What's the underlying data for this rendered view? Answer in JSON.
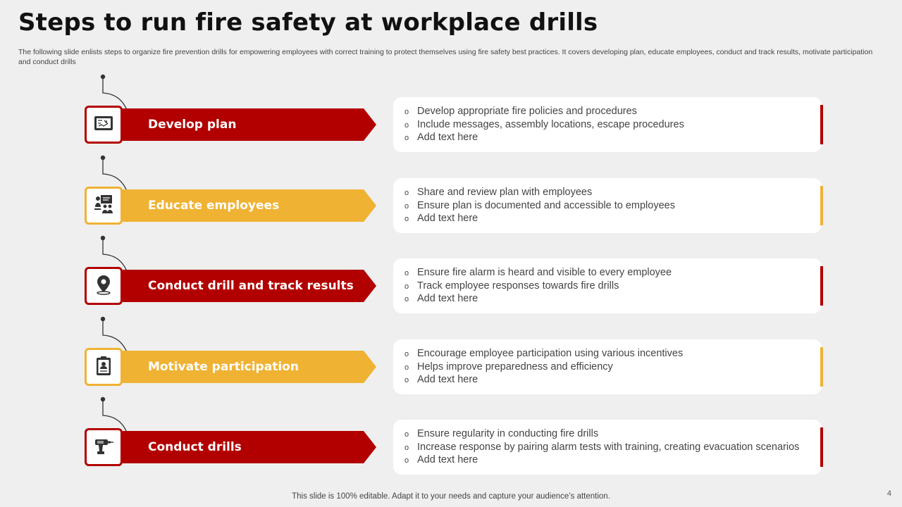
{
  "title": "Steps to run fire safety at workplace drills",
  "subtitle": "The following slide enlists steps to organize fire prevention drills for empowering employees with correct training to protect themselves using fire safety best practices. It covers developing plan, educate employees, conduct and track results, motivate participation and conduct drills",
  "colors": {
    "red": "#b20000",
    "yellow": "#f0b233",
    "accent_red": "#b20000",
    "accent_yellow": "#f0b233"
  },
  "steps": [
    {
      "label": "Develop plan",
      "color": "red",
      "icon": "floor-plan-icon",
      "bullets": [
        "Develop appropriate fire policies and procedures",
        "Include messages, assembly locations, escape procedures",
        "Add text here"
      ]
    },
    {
      "label": "Educate employees",
      "color": "yellow",
      "icon": "training-presentation-icon",
      "bullets": [
        "Share and review plan with employees",
        "Ensure plan is documented and accessible to employees",
        "Add text here"
      ]
    },
    {
      "label": "Conduct drill and track results",
      "color": "red",
      "icon": "location-pin-icon",
      "bullets": [
        "Ensure fire alarm is heard and visible to every employee",
        "Track employee responses towards fire drills",
        "Add text here"
      ]
    },
    {
      "label": "Motivate participation",
      "color": "yellow",
      "icon": "clipboard-profile-icon",
      "bullets": [
        "Encourage employee participation using various incentives",
        "Helps improve preparedness and efficiency",
        "Add text here"
      ]
    },
    {
      "label": "Conduct drills",
      "color": "red",
      "icon": "power-drill-icon",
      "bullets": [
        "Ensure regularity  in conducting fire drills",
        "Increase response by pairing alarm tests with training, creating evacuation scenarios",
        "Add text here"
      ]
    }
  ],
  "bullet_glyph": "o",
  "footer": "This slide is 100% editable. Adapt it to your needs and capture your audience’s attention.",
  "page_number": "4"
}
